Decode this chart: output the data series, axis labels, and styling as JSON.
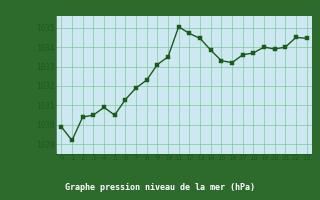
{
  "x": [
    0,
    1,
    2,
    3,
    4,
    5,
    6,
    7,
    8,
    9,
    10,
    11,
    12,
    13,
    14,
    15,
    16,
    17,
    18,
    19,
    20,
    21,
    22,
    23
  ],
  "y": [
    1029.9,
    1029.2,
    1030.4,
    1030.5,
    1030.9,
    1030.5,
    1031.3,
    1031.9,
    1032.3,
    1033.1,
    1033.5,
    1035.05,
    1034.7,
    1034.45,
    1033.85,
    1033.3,
    1033.2,
    1033.6,
    1033.7,
    1034.0,
    1033.9,
    1034.0,
    1034.5,
    1034.45
  ],
  "line_color": "#1a5c1a",
  "marker_color": "#1a5c1a",
  "bg_color": "#cde8f0",
  "grid_color": "#7ec8a0",
  "xlabel": "Graphe pression niveau de la mer (hPa)",
  "xlabel_color": "#1a5c1a",
  "tick_color": "#1a5c1a",
  "ylim_min": 1028.5,
  "ylim_max": 1035.6,
  "yticks": [
    1029,
    1030,
    1031,
    1032,
    1033,
    1034,
    1035
  ],
  "xticks": [
    0,
    1,
    2,
    3,
    4,
    5,
    6,
    7,
    8,
    9,
    10,
    11,
    12,
    13,
    14,
    15,
    16,
    17,
    18,
    19,
    20,
    21,
    22,
    23
  ],
  "marker_size": 2.8,
  "line_width": 1.0,
  "axis_bg": "#cde8f0",
  "outer_bg": "#2d6b2d",
  "xlabel_bg": "#2d6b2d",
  "spine_color": "#1a5c1a"
}
